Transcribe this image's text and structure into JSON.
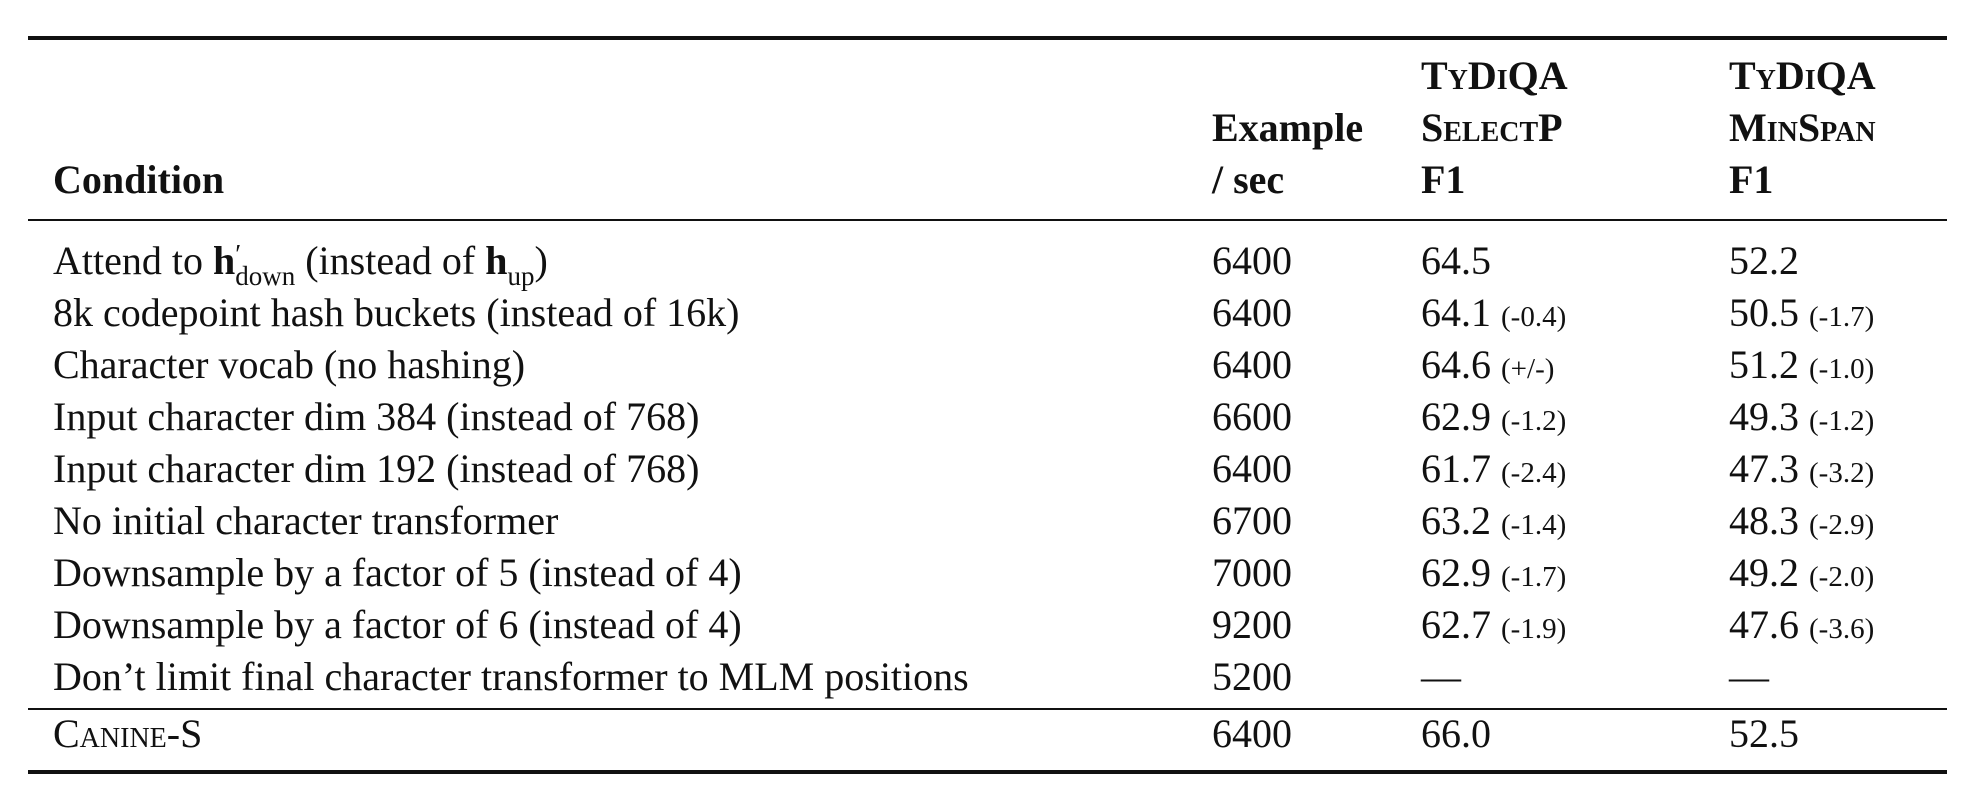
{
  "table": {
    "header": [
      [
        "Condition"
      ],
      [
        "Example",
        "/ sec"
      ],
      [
        "TyDiQA",
        "SelectP",
        "F1"
      ],
      [
        "TyDiQA",
        "MinSpan",
        "F1"
      ]
    ],
    "rows": [
      {
        "condition": [
          "Attend to ",
          {
            "bold": "h",
            "sup": "′",
            "sub": "down"
          },
          " (instead of ",
          {
            "bold": "h",
            "sub": "up"
          },
          ")"
        ],
        "speed": "6400",
        "selectp": [
          "64.5"
        ],
        "minspan": [
          "52.2"
        ]
      },
      {
        "condition": "8k codepoint hash buckets (instead of 16k)",
        "speed": "6400",
        "selectp": [
          "64.1",
          "(-0.4)"
        ],
        "minspan": [
          "50.5",
          "(-1.7)"
        ]
      },
      {
        "condition": "Character vocab (no hashing)",
        "speed": "6400",
        "selectp": [
          "64.6",
          "(+/-)"
        ],
        "minspan": [
          "51.2",
          "(-1.0)"
        ]
      },
      {
        "condition": "Input character dim 384 (instead of 768)",
        "speed": "6600",
        "selectp": [
          "62.9",
          "(-1.2)"
        ],
        "minspan": [
          "49.3",
          "(-1.2)"
        ]
      },
      {
        "condition": "Input character dim 192 (instead of 768)",
        "speed": "6400",
        "selectp": [
          "61.7",
          "(-2.4)"
        ],
        "minspan": [
          "47.3",
          "(-3.2)"
        ]
      },
      {
        "condition": "No initial character transformer",
        "speed": "6700",
        "selectp": [
          "63.2",
          "(-1.4)"
        ],
        "minspan": [
          "48.3",
          "(-2.9)"
        ]
      },
      {
        "condition": "Downsample by a factor of 5 (instead of 4)",
        "speed": "7000",
        "selectp": [
          "62.9",
          "(-1.7)"
        ],
        "minspan": [
          "49.2",
          "(-2.0)"
        ]
      },
      {
        "condition": "Downsample by a factor of 6 (instead of 4)",
        "speed": "9200",
        "selectp": [
          "62.7",
          "(-1.9)"
        ],
        "minspan": [
          "47.6",
          "(-3.6)"
        ]
      },
      {
        "condition": "Don’t limit final character transformer to MLM positions",
        "speed": "5200",
        "selectp": [
          "—"
        ],
        "minspan": [
          "—"
        ]
      }
    ],
    "baseline": {
      "condition": "Canine-S",
      "speed": "6400",
      "selectp": [
        "66.0"
      ],
      "minspan": [
        "52.5"
      ]
    }
  }
}
